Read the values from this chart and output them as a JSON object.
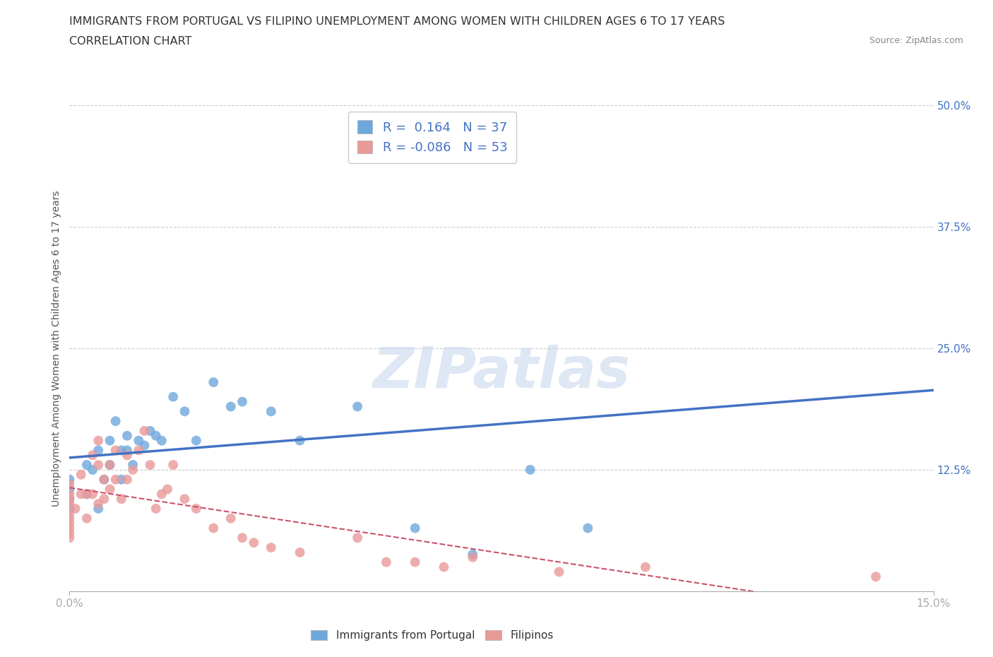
{
  "title_line1": "IMMIGRANTS FROM PORTUGAL VS FILIPINO UNEMPLOYMENT AMONG WOMEN WITH CHILDREN AGES 6 TO 17 YEARS",
  "title_line2": "CORRELATION CHART",
  "source_text": "Source: ZipAtlas.com",
  "ylabel": "Unemployment Among Women with Children Ages 6 to 17 years",
  "xlim": [
    0.0,
    0.15
  ],
  "ylim": [
    0.0,
    0.5
  ],
  "r1": 0.164,
  "n1": 37,
  "r2": -0.086,
  "n2": 53,
  "color_blue": "#6FA8DC",
  "color_pink": "#EA9999",
  "color_blue_line": "#4472C4",
  "color_pink_line": "#C9526B",
  "background_color": "#ffffff",
  "grid_color": "#cccccc",
  "portugal_x": [
    0.0,
    0.0,
    0.0,
    0.0,
    0.003,
    0.003,
    0.004,
    0.005,
    0.005,
    0.006,
    0.007,
    0.007,
    0.008,
    0.009,
    0.009,
    0.01,
    0.01,
    0.011,
    0.012,
    0.013,
    0.014,
    0.015,
    0.016,
    0.018,
    0.02,
    0.022,
    0.025,
    0.028,
    0.03,
    0.035,
    0.04,
    0.05,
    0.06,
    0.07,
    0.08,
    0.09,
    0.072
  ],
  "portugal_y": [
    0.085,
    0.095,
    0.105,
    0.115,
    0.1,
    0.13,
    0.125,
    0.085,
    0.145,
    0.115,
    0.13,
    0.155,
    0.175,
    0.115,
    0.145,
    0.145,
    0.16,
    0.13,
    0.155,
    0.15,
    0.165,
    0.16,
    0.155,
    0.2,
    0.185,
    0.155,
    0.215,
    0.19,
    0.195,
    0.185,
    0.155,
    0.19,
    0.065,
    0.038,
    0.125,
    0.065,
    0.455
  ],
  "filipino_x": [
    0.0,
    0.0,
    0.0,
    0.0,
    0.0,
    0.0,
    0.0,
    0.0,
    0.0,
    0.0,
    0.001,
    0.002,
    0.002,
    0.003,
    0.003,
    0.004,
    0.004,
    0.005,
    0.005,
    0.005,
    0.006,
    0.006,
    0.007,
    0.007,
    0.008,
    0.008,
    0.009,
    0.01,
    0.01,
    0.011,
    0.012,
    0.013,
    0.014,
    0.015,
    0.016,
    0.017,
    0.018,
    0.02,
    0.022,
    0.025,
    0.028,
    0.03,
    0.032,
    0.035,
    0.04,
    0.05,
    0.055,
    0.06,
    0.065,
    0.07,
    0.085,
    0.1,
    0.14
  ],
  "filipino_y": [
    0.07,
    0.075,
    0.065,
    0.06,
    0.055,
    0.08,
    0.09,
    0.095,
    0.1,
    0.11,
    0.085,
    0.1,
    0.12,
    0.075,
    0.1,
    0.14,
    0.1,
    0.13,
    0.09,
    0.155,
    0.115,
    0.095,
    0.13,
    0.105,
    0.145,
    0.115,
    0.095,
    0.14,
    0.115,
    0.125,
    0.145,
    0.165,
    0.13,
    0.085,
    0.1,
    0.105,
    0.13,
    0.095,
    0.085,
    0.065,
    0.075,
    0.055,
    0.05,
    0.045,
    0.04,
    0.055,
    0.03,
    0.03,
    0.025,
    0.035,
    0.02,
    0.025,
    0.015
  ]
}
